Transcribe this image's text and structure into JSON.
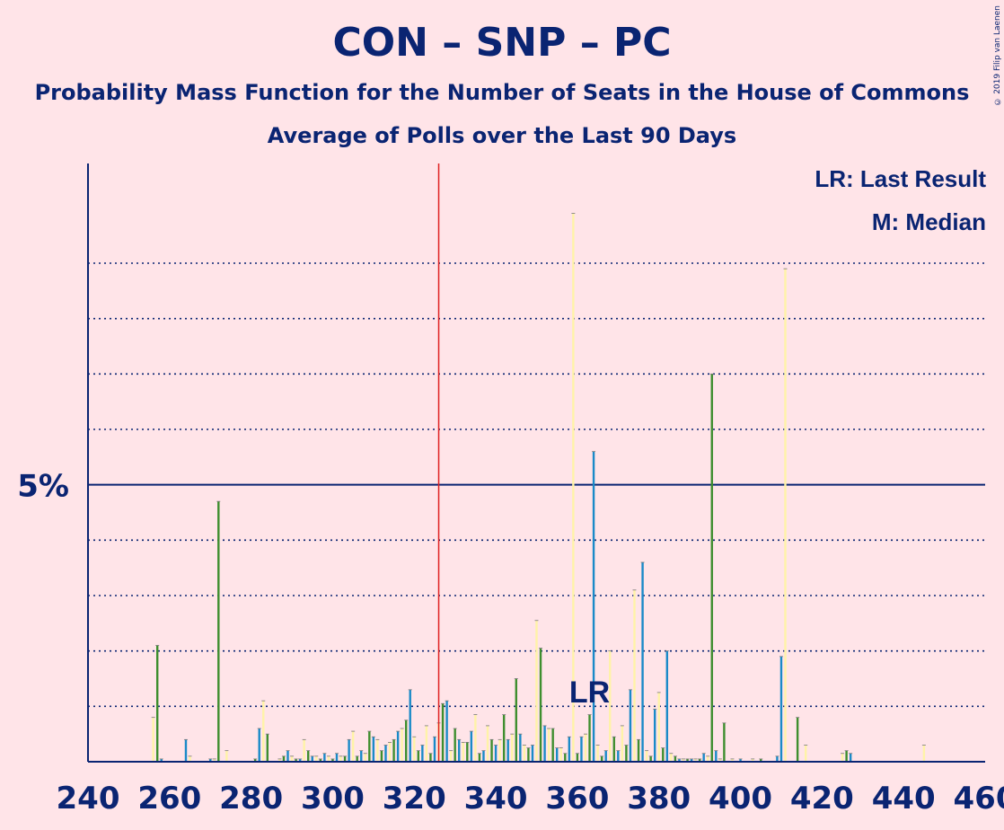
{
  "title": "CON – SNP – PC",
  "subtitle1": "Probability Mass Function for the Number of Seats in the House of Commons",
  "subtitle2": "Average of Polls over the Last 90 Days",
  "copyright": "© 2019 Filip van Laenen",
  "legend": {
    "lr": "LR: Last Result",
    "m": "M: Median"
  },
  "colors": {
    "background": "#ffe4e8",
    "text": "#0a2472",
    "green": "#3e8e2e",
    "blue": "#1a8ac8",
    "yellow": "#fff3a8",
    "red": "#e02020"
  },
  "chart_data": {
    "type": "bar",
    "xlim": [
      240,
      460
    ],
    "ylim": [
      0,
      10.8
    ],
    "x_ticks": [
      240,
      260,
      280,
      300,
      320,
      340,
      360,
      380,
      400,
      420,
      440,
      460
    ],
    "y_tick_label": {
      "value": 5,
      "label": "5%"
    },
    "gridlines": [
      1,
      2,
      3,
      4,
      6,
      7,
      8,
      9
    ],
    "last_result": {
      "seats": 326,
      "label": "LR"
    },
    "median_seats": 358,
    "points": [
      [
        256,
        0.8,
        "y"
      ],
      [
        257,
        2.1,
        "g"
      ],
      [
        258,
        0.05,
        "b"
      ],
      [
        264,
        0.4,
        "b"
      ],
      [
        265,
        0.1,
        "y"
      ],
      [
        270,
        0.05,
        "b"
      ],
      [
        271,
        0.05,
        "y"
      ],
      [
        272,
        4.7,
        "g"
      ],
      [
        274,
        0.2,
        "y"
      ],
      [
        281,
        0.05,
        "g"
      ],
      [
        282,
        0.6,
        "b"
      ],
      [
        283,
        1.1,
        "y"
      ],
      [
        284,
        0.5,
        "g"
      ],
      [
        287,
        0.05,
        "y"
      ],
      [
        288,
        0.1,
        "g"
      ],
      [
        289,
        0.2,
        "b"
      ],
      [
        290,
        0.1,
        "y"
      ],
      [
        291,
        0.05,
        "g"
      ],
      [
        292,
        0.05,
        "b"
      ],
      [
        293,
        0.4,
        "y"
      ],
      [
        294,
        0.2,
        "g"
      ],
      [
        295,
        0.1,
        "b"
      ],
      [
        296,
        0.1,
        "y"
      ],
      [
        297,
        0.05,
        "g"
      ],
      [
        298,
        0.15,
        "b"
      ],
      [
        299,
        0.1,
        "y"
      ],
      [
        300,
        0.05,
        "g"
      ],
      [
        301,
        0.15,
        "b"
      ],
      [
        302,
        0.1,
        "y"
      ],
      [
        303,
        0.1,
        "g"
      ],
      [
        304,
        0.4,
        "b"
      ],
      [
        305,
        0.55,
        "y"
      ],
      [
        306,
        0.1,
        "g"
      ],
      [
        307,
        0.2,
        "b"
      ],
      [
        308,
        0.15,
        "y"
      ],
      [
        309,
        0.55,
        "g"
      ],
      [
        310,
        0.45,
        "b"
      ],
      [
        311,
        0.4,
        "y"
      ],
      [
        312,
        0.2,
        "g"
      ],
      [
        313,
        0.3,
        "b"
      ],
      [
        314,
        0.35,
        "y"
      ],
      [
        315,
        0.4,
        "g"
      ],
      [
        316,
        0.55,
        "b"
      ],
      [
        317,
        0.6,
        "y"
      ],
      [
        318,
        0.75,
        "g"
      ],
      [
        319,
        1.3,
        "b"
      ],
      [
        320,
        0.45,
        "y"
      ],
      [
        321,
        0.2,
        "g"
      ],
      [
        322,
        0.3,
        "b"
      ],
      [
        323,
        0.65,
        "y"
      ],
      [
        324,
        0.15,
        "g"
      ],
      [
        325,
        0.45,
        "b"
      ],
      [
        326,
        0.7,
        "y"
      ],
      [
        327,
        1.05,
        "g"
      ],
      [
        328,
        1.1,
        "b"
      ],
      [
        329,
        0.2,
        "y"
      ],
      [
        330,
        0.6,
        "g"
      ],
      [
        331,
        0.4,
        "b"
      ],
      [
        332,
        0.35,
        "y"
      ],
      [
        333,
        0.35,
        "g"
      ],
      [
        334,
        0.55,
        "b"
      ],
      [
        335,
        0.85,
        "y"
      ],
      [
        336,
        0.15,
        "g"
      ],
      [
        337,
        0.2,
        "b"
      ],
      [
        338,
        0.65,
        "y"
      ],
      [
        339,
        0.4,
        "g"
      ],
      [
        340,
        0.3,
        "b"
      ],
      [
        341,
        0.4,
        "y"
      ],
      [
        342,
        0.85,
        "g"
      ],
      [
        343,
        0.4,
        "b"
      ],
      [
        344,
        0.5,
        "y"
      ],
      [
        345,
        1.5,
        "g"
      ],
      [
        346,
        0.5,
        "b"
      ],
      [
        347,
        0.3,
        "y"
      ],
      [
        348,
        0.25,
        "g"
      ],
      [
        349,
        0.3,
        "b"
      ],
      [
        350,
        2.55,
        "y"
      ],
      [
        351,
        2.05,
        "g"
      ],
      [
        352,
        0.65,
        "b"
      ],
      [
        353,
        0.6,
        "y"
      ],
      [
        354,
        0.6,
        "g"
      ],
      [
        355,
        0.25,
        "b"
      ],
      [
        356,
        0.25,
        "y"
      ],
      [
        357,
        0.15,
        "g"
      ],
      [
        358,
        0.45,
        "b"
      ],
      [
        359,
        9.9,
        "y"
      ],
      [
        360,
        0.15,
        "g"
      ],
      [
        361,
        0.45,
        "b"
      ],
      [
        362,
        0.5,
        "y"
      ],
      [
        363,
        0.85,
        "g"
      ],
      [
        364,
        5.6,
        "b"
      ],
      [
        365,
        0.3,
        "y"
      ],
      [
        366,
        0.1,
        "g"
      ],
      [
        367,
        0.2,
        "b"
      ],
      [
        368,
        2.0,
        "y"
      ],
      [
        369,
        0.45,
        "g"
      ],
      [
        370,
        0.2,
        "b"
      ],
      [
        371,
        0.65,
        "y"
      ],
      [
        372,
        0.3,
        "g"
      ],
      [
        373,
        1.3,
        "b"
      ],
      [
        374,
        3.1,
        "y"
      ],
      [
        375,
        0.4,
        "g"
      ],
      [
        376,
        3.6,
        "b"
      ],
      [
        377,
        0.2,
        "y"
      ],
      [
        378,
        0.1,
        "g"
      ],
      [
        379,
        0.95,
        "b"
      ],
      [
        380,
        1.25,
        "y"
      ],
      [
        381,
        0.25,
        "g"
      ],
      [
        382,
        2.0,
        "b"
      ],
      [
        383,
        0.15,
        "y"
      ],
      [
        384,
        0.1,
        "g"
      ],
      [
        385,
        0.05,
        "b"
      ],
      [
        386,
        0.05,
        "y"
      ],
      [
        387,
        0.05,
        "g"
      ],
      [
        388,
        0.05,
        "b"
      ],
      [
        389,
        0.05,
        "y"
      ],
      [
        390,
        0.05,
        "g"
      ],
      [
        391,
        0.15,
        "b"
      ],
      [
        392,
        0.1,
        "y"
      ],
      [
        393,
        7.0,
        "g"
      ],
      [
        394,
        0.2,
        "b"
      ],
      [
        395,
        0.05,
        "y"
      ],
      [
        396,
        0.7,
        "g"
      ],
      [
        398,
        0.05,
        "y"
      ],
      [
        400,
        0.05,
        "b"
      ],
      [
        403,
        0.05,
        "y"
      ],
      [
        405,
        0.05,
        "g"
      ],
      [
        409,
        0.1,
        "b"
      ],
      [
        410,
        1.9,
        "b"
      ],
      [
        411,
        8.9,
        "y"
      ],
      [
        414,
        0.8,
        "g"
      ],
      [
        416,
        0.3,
        "y"
      ],
      [
        425,
        0.15,
        "y"
      ],
      [
        426,
        0.2,
        "g"
      ],
      [
        427,
        0.15,
        "b"
      ],
      [
        445,
        0.3,
        "y"
      ]
    ]
  }
}
